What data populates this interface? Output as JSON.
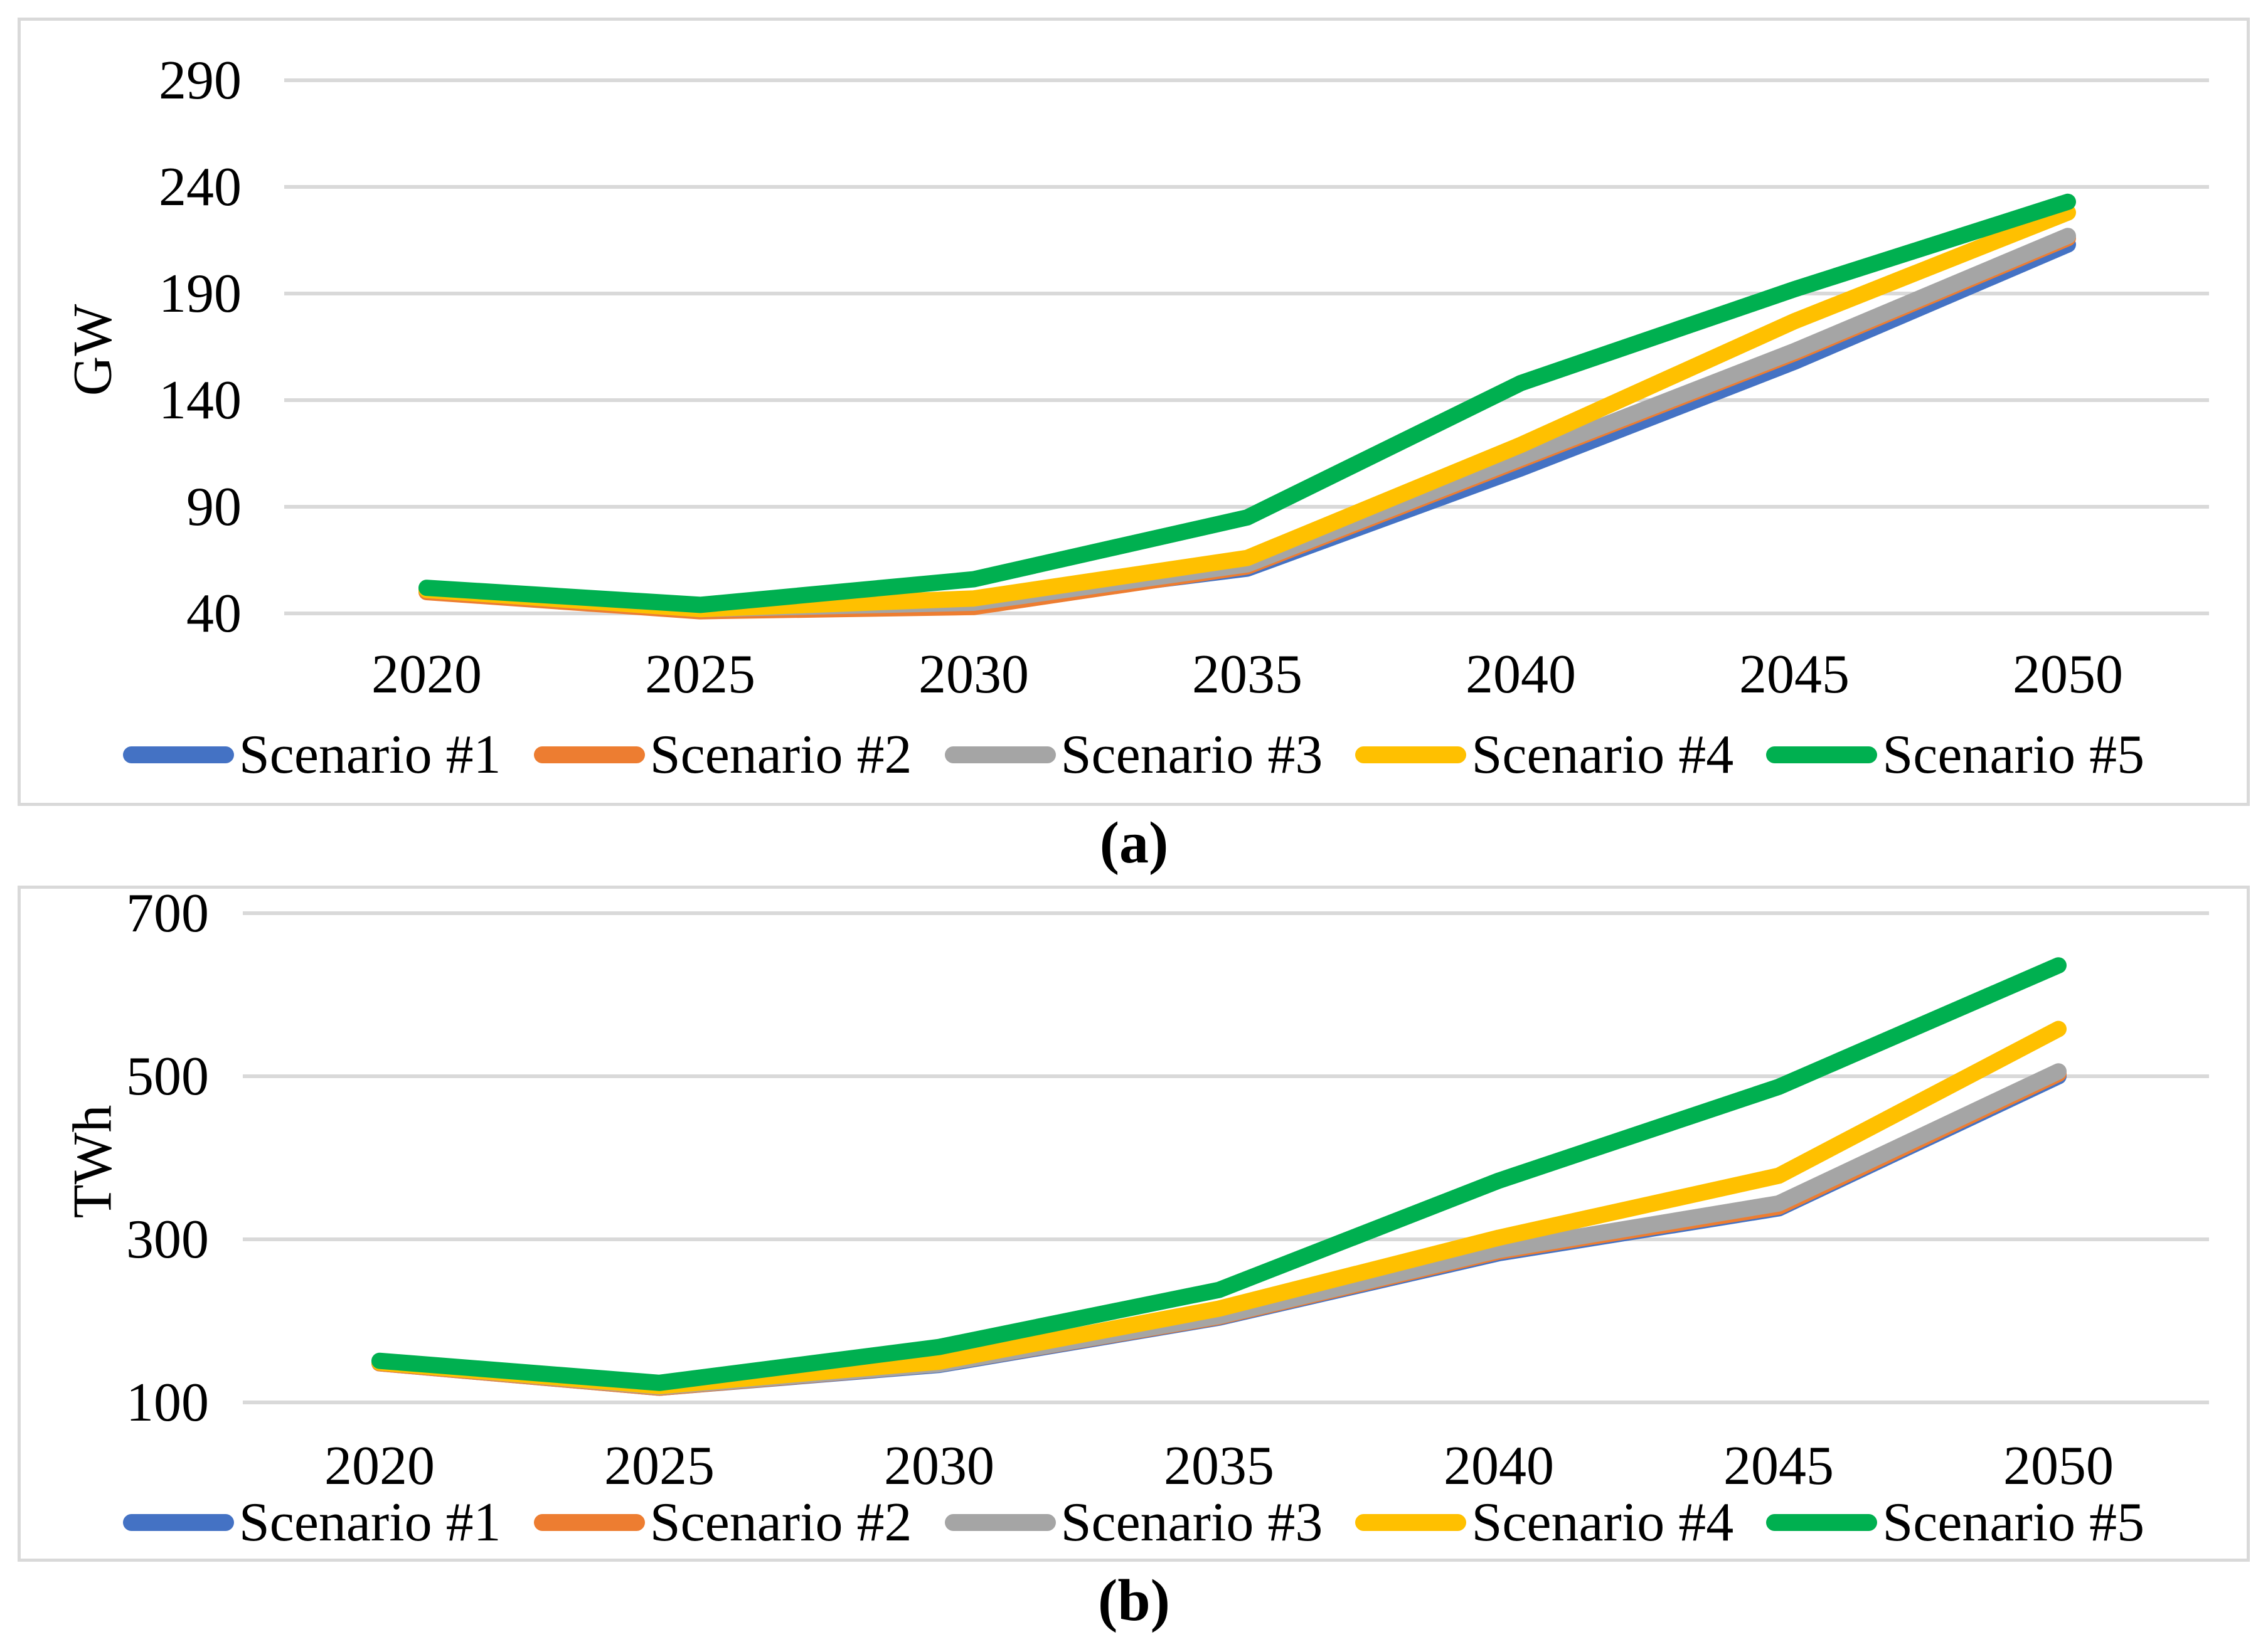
{
  "captions": {
    "a": "(a)",
    "b": "(b)"
  },
  "chart_data": [
    {
      "type": "line",
      "title": "",
      "xlabel": "",
      "ylabel": "GW",
      "categories": [
        "2020",
        "2025",
        "2030",
        "2035",
        "2040",
        "2045",
        "2050"
      ],
      "y_ticks": [
        290,
        240,
        190,
        140,
        90,
        40
      ],
      "ylim": [
        40,
        290
      ],
      "grid": "horizontal",
      "legend_position": "bottom",
      "gridline_color": "#D9D9D9",
      "series": [
        {
          "name": "Scenario #1",
          "color": "#4472C4",
          "values": [
            51,
            42,
            45,
            61,
            108,
            158,
            213
          ]
        },
        {
          "name": "Scenario #2",
          "color": "#ED7D31",
          "values": [
            50,
            41,
            43,
            62,
            112,
            162,
            216
          ]
        },
        {
          "name": "Scenario #3",
          "color": "#A5A5A5",
          "values": [
            51,
            42,
            45,
            63,
            113,
            163,
            217
          ]
        },
        {
          "name": "Scenario #4",
          "color": "#FFC000",
          "values": [
            51,
            42,
            47,
            66,
            119,
            177,
            228
          ]
        },
        {
          "name": "Scenario #5",
          "color": "#00B050",
          "values": [
            52,
            44,
            56,
            85,
            148,
            192,
            233
          ]
        }
      ]
    },
    {
      "type": "line",
      "title": "",
      "xlabel": "",
      "ylabel": "TWh",
      "categories": [
        "2020",
        "2025",
        "2030",
        "2035",
        "2040",
        "2045",
        "2050"
      ],
      "y_ticks": [
        700,
        500,
        300,
        100
      ],
      "ylim": [
        100,
        700
      ],
      "grid": "horizontal",
      "legend_position": "bottom",
      "gridline_color": "#D9D9D9",
      "series": [
        {
          "name": "Scenario #1",
          "color": "#4472C4",
          "values": [
            148,
            118,
            146,
            204,
            283,
            338,
            500
          ]
        },
        {
          "name": "Scenario #2",
          "color": "#ED7D31",
          "values": [
            148,
            118,
            147,
            205,
            285,
            340,
            503
          ]
        },
        {
          "name": "Scenario #3",
          "color": "#A5A5A5",
          "values": [
            149,
            119,
            147,
            206,
            287,
            344,
            506
          ]
        },
        {
          "name": "Scenario #4",
          "color": "#FFC000",
          "values": [
            149,
            120,
            150,
            215,
            302,
            378,
            558
          ]
        },
        {
          "name": "Scenario #5",
          "color": "#00B050",
          "values": [
            151,
            124,
            168,
            238,
            372,
            487,
            636
          ]
        }
      ]
    }
  ]
}
